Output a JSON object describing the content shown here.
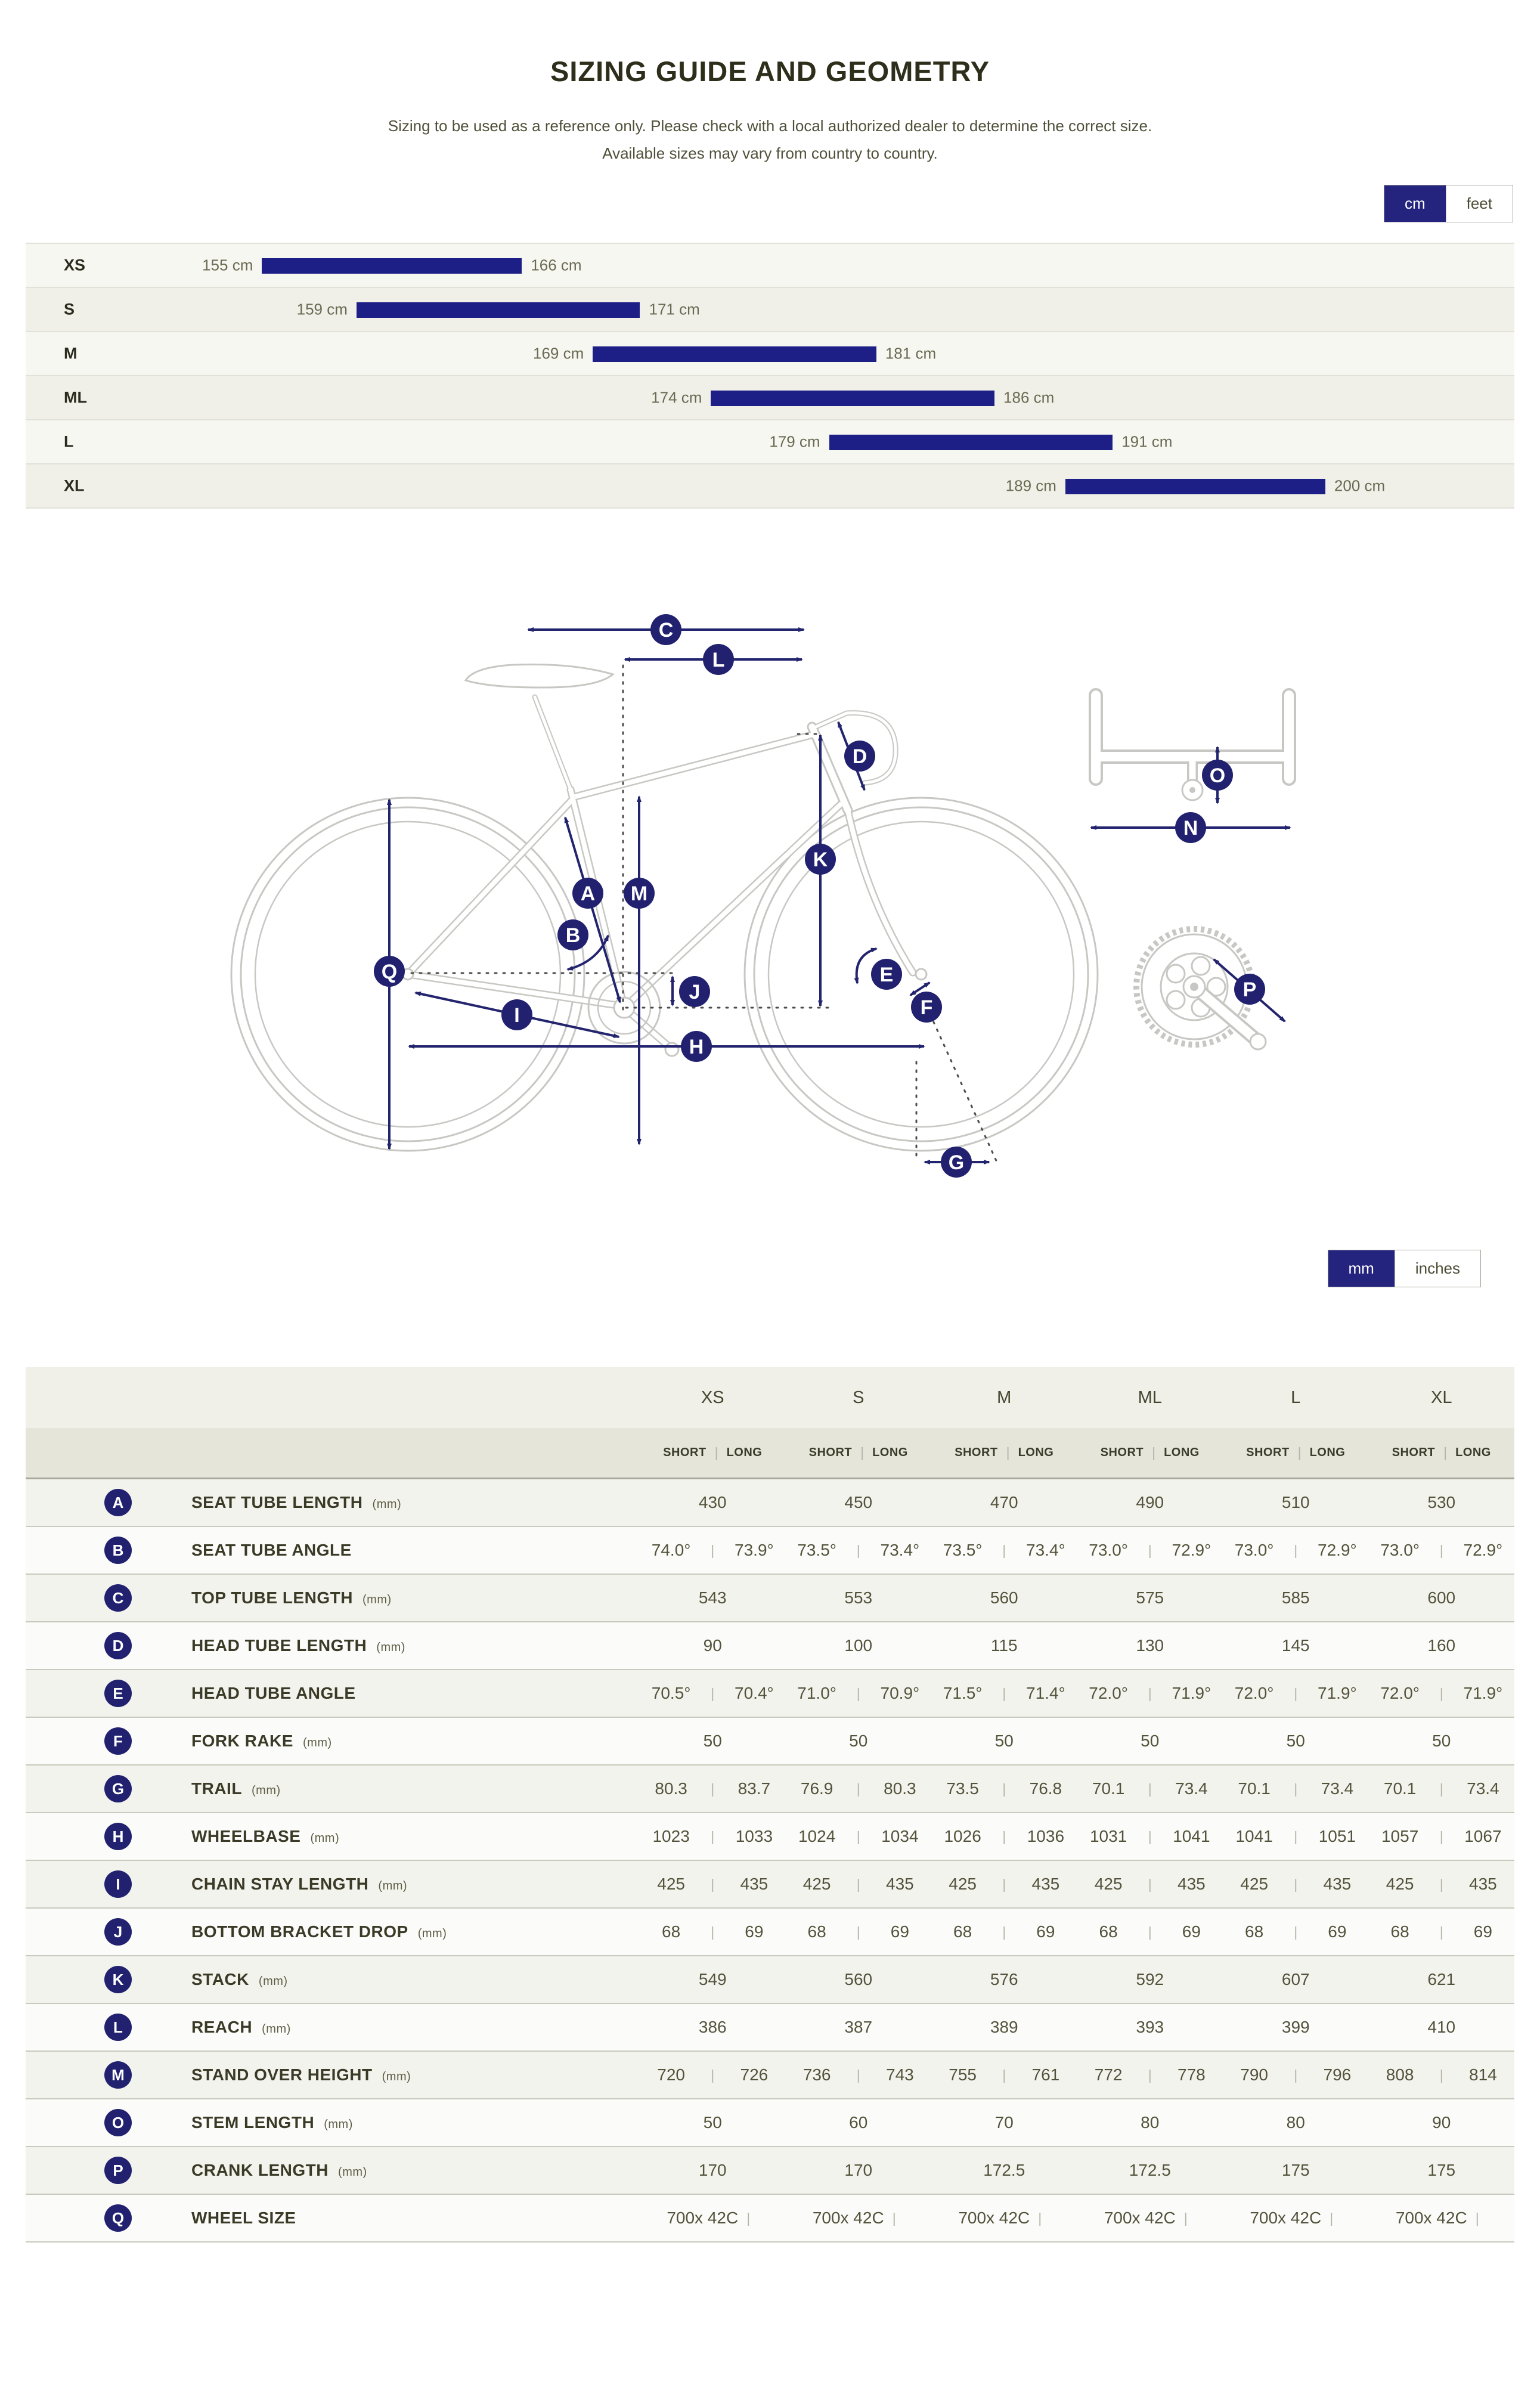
{
  "colors": {
    "accent_navy": "#1e1f86",
    "circle_navy": "#212170",
    "text_olive": "#53533c"
  },
  "header": {
    "title": "SIZING GUIDE AND GEOMETRY",
    "subtitle_line1": "Sizing to be used as a reference only. Please check with a local authorized dealer to determine the correct size.",
    "subtitle_line2": "Available sizes may vary from country to country."
  },
  "unit_toggles": {
    "height": {
      "options": [
        "cm",
        "feet"
      ],
      "selected": "cm"
    },
    "length": {
      "options": [
        "mm",
        "inches"
      ],
      "selected": "mm"
    }
  },
  "chart_data": {
    "type": "bar",
    "title": "Rider height ranges per frame size",
    "axis_min_cm": 145,
    "axis_max_cm": 208,
    "rows": [
      {
        "size": "XS",
        "min": 155,
        "max": 166,
        "min_label": "155 cm",
        "max_label": "166 cm"
      },
      {
        "size": "S",
        "min": 159,
        "max": 171,
        "min_label": "159 cm",
        "max_label": "171 cm"
      },
      {
        "size": "M",
        "min": 169,
        "max": 181,
        "min_label": "169 cm",
        "max_label": "181 cm"
      },
      {
        "size": "ML",
        "min": 174,
        "max": 186,
        "min_label": "174 cm",
        "max_label": "186 cm"
      },
      {
        "size": "L",
        "min": 179,
        "max": 191,
        "min_label": "179 cm",
        "max_label": "191 cm"
      },
      {
        "size": "XL",
        "min": 189,
        "max": 200,
        "min_label": "189 cm",
        "max_label": "200 cm"
      }
    ]
  },
  "diagram": {
    "labels": [
      "A",
      "B",
      "C",
      "D",
      "E",
      "F",
      "G",
      "H",
      "I",
      "J",
      "K",
      "L",
      "M",
      "N",
      "O",
      "P",
      "Q"
    ]
  },
  "table": {
    "size_columns": [
      "XS",
      "S",
      "M",
      "ML",
      "L",
      "XL"
    ],
    "fit_columns": [
      "SHORT",
      "LONG"
    ],
    "rows": [
      {
        "letter": "A",
        "label": "SEAT TUBE LENGTH",
        "unit": "(mm)",
        "type": "single",
        "values": [
          "430",
          "450",
          "470",
          "490",
          "510",
          "530"
        ]
      },
      {
        "letter": "B",
        "label": "SEAT TUBE ANGLE",
        "unit": "",
        "type": "pair",
        "values": [
          [
            "74.0°",
            "73.9°"
          ],
          [
            "73.5°",
            "73.4°"
          ],
          [
            "73.5°",
            "73.4°"
          ],
          [
            "73.0°",
            "72.9°"
          ],
          [
            "73.0°",
            "72.9°"
          ],
          [
            "73.0°",
            "72.9°"
          ]
        ]
      },
      {
        "letter": "C",
        "label": "TOP TUBE LENGTH",
        "unit": "(mm)",
        "type": "single",
        "values": [
          "543",
          "553",
          "560",
          "575",
          "585",
          "600"
        ]
      },
      {
        "letter": "D",
        "label": "HEAD TUBE LENGTH",
        "unit": "(mm)",
        "type": "single",
        "values": [
          "90",
          "100",
          "115",
          "130",
          "145",
          "160"
        ]
      },
      {
        "letter": "E",
        "label": "HEAD TUBE ANGLE",
        "unit": "",
        "type": "pair",
        "values": [
          [
            "70.5°",
            "70.4°"
          ],
          [
            "71.0°",
            "70.9°"
          ],
          [
            "71.5°",
            "71.4°"
          ],
          [
            "72.0°",
            "71.9°"
          ],
          [
            "72.0°",
            "71.9°"
          ],
          [
            "72.0°",
            "71.9°"
          ]
        ]
      },
      {
        "letter": "F",
        "label": "FORK RAKE",
        "unit": "(mm)",
        "type": "single",
        "values": [
          "50",
          "50",
          "50",
          "50",
          "50",
          "50"
        ]
      },
      {
        "letter": "G",
        "label": "TRAIL",
        "unit": "(mm)",
        "type": "pair",
        "values": [
          [
            "80.3",
            "83.7"
          ],
          [
            "76.9",
            "80.3"
          ],
          [
            "73.5",
            "76.8"
          ],
          [
            "70.1",
            "73.4"
          ],
          [
            "70.1",
            "73.4"
          ],
          [
            "70.1",
            "73.4"
          ]
        ]
      },
      {
        "letter": "H",
        "label": "WHEELBASE",
        "unit": "(mm)",
        "type": "pair",
        "values": [
          [
            "1023",
            "1033"
          ],
          [
            "1024",
            "1034"
          ],
          [
            "1026",
            "1036"
          ],
          [
            "1031",
            "1041"
          ],
          [
            "1041",
            "1051"
          ],
          [
            "1057",
            "1067"
          ]
        ]
      },
      {
        "letter": "I",
        "label": "CHAIN STAY LENGTH",
        "unit": "(mm)",
        "type": "pair",
        "values": [
          [
            "425",
            "435"
          ],
          [
            "425",
            "435"
          ],
          [
            "425",
            "435"
          ],
          [
            "425",
            "435"
          ],
          [
            "425",
            "435"
          ],
          [
            "425",
            "435"
          ]
        ]
      },
      {
        "letter": "J",
        "label": "BOTTOM BRACKET DROP",
        "unit": "(mm)",
        "type": "pair",
        "values": [
          [
            "68",
            "69"
          ],
          [
            "68",
            "69"
          ],
          [
            "68",
            "69"
          ],
          [
            "68",
            "69"
          ],
          [
            "68",
            "69"
          ],
          [
            "68",
            "69"
          ]
        ]
      },
      {
        "letter": "K",
        "label": "STACK",
        "unit": "(mm)",
        "type": "single",
        "values": [
          "549",
          "560",
          "576",
          "592",
          "607",
          "621"
        ]
      },
      {
        "letter": "L",
        "label": "REACH",
        "unit": "(mm)",
        "type": "single",
        "values": [
          "386",
          "387",
          "389",
          "393",
          "399",
          "410"
        ]
      },
      {
        "letter": "M",
        "label": "STAND OVER HEIGHT",
        "unit": "(mm)",
        "type": "pair",
        "values": [
          [
            "720",
            "726"
          ],
          [
            "736",
            "743"
          ],
          [
            "755",
            "761"
          ],
          [
            "772",
            "778"
          ],
          [
            "790",
            "796"
          ],
          [
            "808",
            "814"
          ]
        ]
      },
      {
        "letter": "O",
        "label": "STEM LENGTH",
        "unit": "(mm)",
        "type": "single",
        "values": [
          "50",
          "60",
          "70",
          "80",
          "80",
          "90"
        ]
      },
      {
        "letter": "P",
        "label": "CRANK LENGTH",
        "unit": "(mm)",
        "type": "single",
        "values": [
          "170",
          "170",
          "172.5",
          "172.5",
          "175",
          "175"
        ]
      },
      {
        "letter": "Q",
        "label": "WHEEL SIZE",
        "unit": "",
        "type": "single",
        "suffix": "|",
        "values": [
          "700x 42C",
          "700x 42C",
          "700x 42C",
          "700x 42C",
          "700x 42C",
          "700x 42C"
        ]
      }
    ]
  }
}
